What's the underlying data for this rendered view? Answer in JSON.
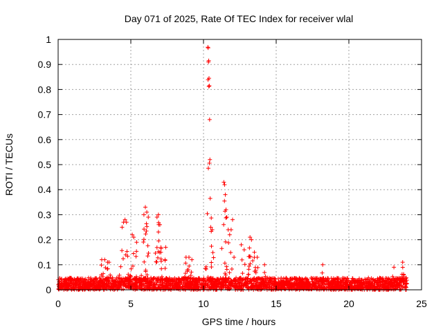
{
  "chart_data": {
    "type": "scatter",
    "title": "Day 071 of 2025, Rate Of TEC Index for receiver wlal",
    "xlabel": "GPS time / hours",
    "ylabel": "ROTI / TECUs",
    "xlim": [
      0,
      25
    ],
    "ylim": [
      0,
      1
    ],
    "x_ticks": [
      0,
      5,
      10,
      15,
      20,
      25
    ],
    "x_tick_labels": [
      "0",
      "5",
      "10",
      "15",
      "20",
      "25"
    ],
    "y_ticks": [
      0,
      0.1,
      0.2,
      0.3,
      0.4,
      0.5,
      0.6,
      0.7,
      0.8,
      0.9,
      1.0
    ],
    "y_tick_labels": [
      "0",
      "0.1",
      "0.2",
      "0.3",
      "0.4",
      "0.5",
      "0.6",
      "0.7",
      "0.8",
      "0.9",
      "1"
    ],
    "grid": true,
    "marker": "+",
    "color": "#ff0000",
    "series": [
      {
        "name": "ROTI",
        "x": [
          3.0,
          3.2,
          3.4,
          3.5,
          4.4,
          4.5,
          4.6,
          4.7,
          5.1,
          5.2,
          5.4,
          5.9,
          6.0,
          6.1,
          6.2,
          6.8,
          6.9,
          7.0,
          7.4,
          8.8,
          9.0,
          9.2,
          10.3,
          10.32,
          10.34,
          10.36,
          10.38,
          10.4,
          10.42,
          10.44,
          10.46,
          10.5,
          10.6,
          11.4,
          11.45,
          11.5,
          11.55,
          11.6,
          11.7,
          11.8,
          11.9,
          12.0,
          12.1,
          12.6,
          12.8,
          13.2,
          13.3,
          13.5,
          13.7,
          14.2,
          18.2,
          23.1,
          23.7
        ],
        "y": [
          0.12,
          0.12,
          0.11,
          0.11,
          0.25,
          0.27,
          0.28,
          0.27,
          0.22,
          0.21,
          0.19,
          0.3,
          0.33,
          0.31,
          0.29,
          0.29,
          0.3,
          0.26,
          0.17,
          0.13,
          0.13,
          0.12,
          0.969,
          0.966,
          0.91,
          0.915,
          0.845,
          0.815,
          0.68,
          0.52,
          0.365,
          0.25,
          0.24,
          0.43,
          0.42,
          0.38,
          0.32,
          0.29,
          0.24,
          0.22,
          0.24,
          0.28,
          0.13,
          0.18,
          0.16,
          0.21,
          0.2,
          0.15,
          0.13,
          0.1,
          0.1,
          0.09,
          0.11
        ]
      }
    ],
    "baseline_noise_level": 0.03
  }
}
